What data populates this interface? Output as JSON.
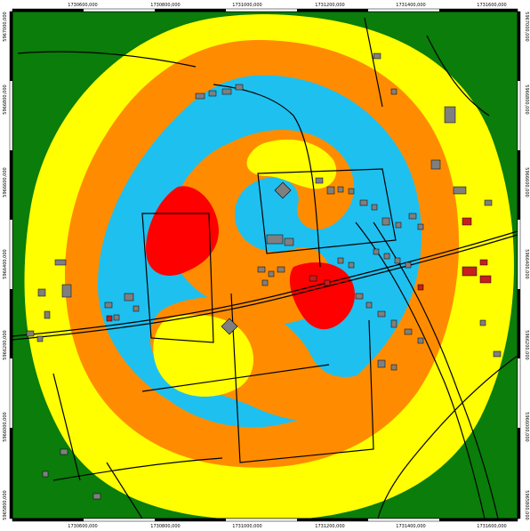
{
  "map": {
    "colors": {
      "outer": "#0a7d0a",
      "zone_yellow": "#ffff00",
      "zone_orange": "#ff8c00",
      "zone_blue": "#1ec0f0",
      "zone_red": "#ff0000",
      "building": "#7f7f7f",
      "building_red": "#c81e1e",
      "lines": "#000000"
    },
    "top_ticks": [
      "1730600,000",
      "1730800,000",
      "1731000,000",
      "1731200,000",
      "1731400,000",
      "1731600,000"
    ],
    "bottom_ticks": [
      "1730600,000",
      "1730800,000",
      "1731000,000",
      "1731200,000",
      "1731400,000",
      "1731600,000"
    ],
    "left_ticks": [
      "5967000,000",
      "5966800,000",
      "5966600,000",
      "5966400,000",
      "5966200,000",
      "5966000,000",
      "5965800,000"
    ],
    "right_ticks": [
      "5967000,000",
      "5966800,000",
      "5966600,000",
      "5966400,000",
      "5966200,000",
      "5966000,000",
      "5965800,000"
    ]
  }
}
